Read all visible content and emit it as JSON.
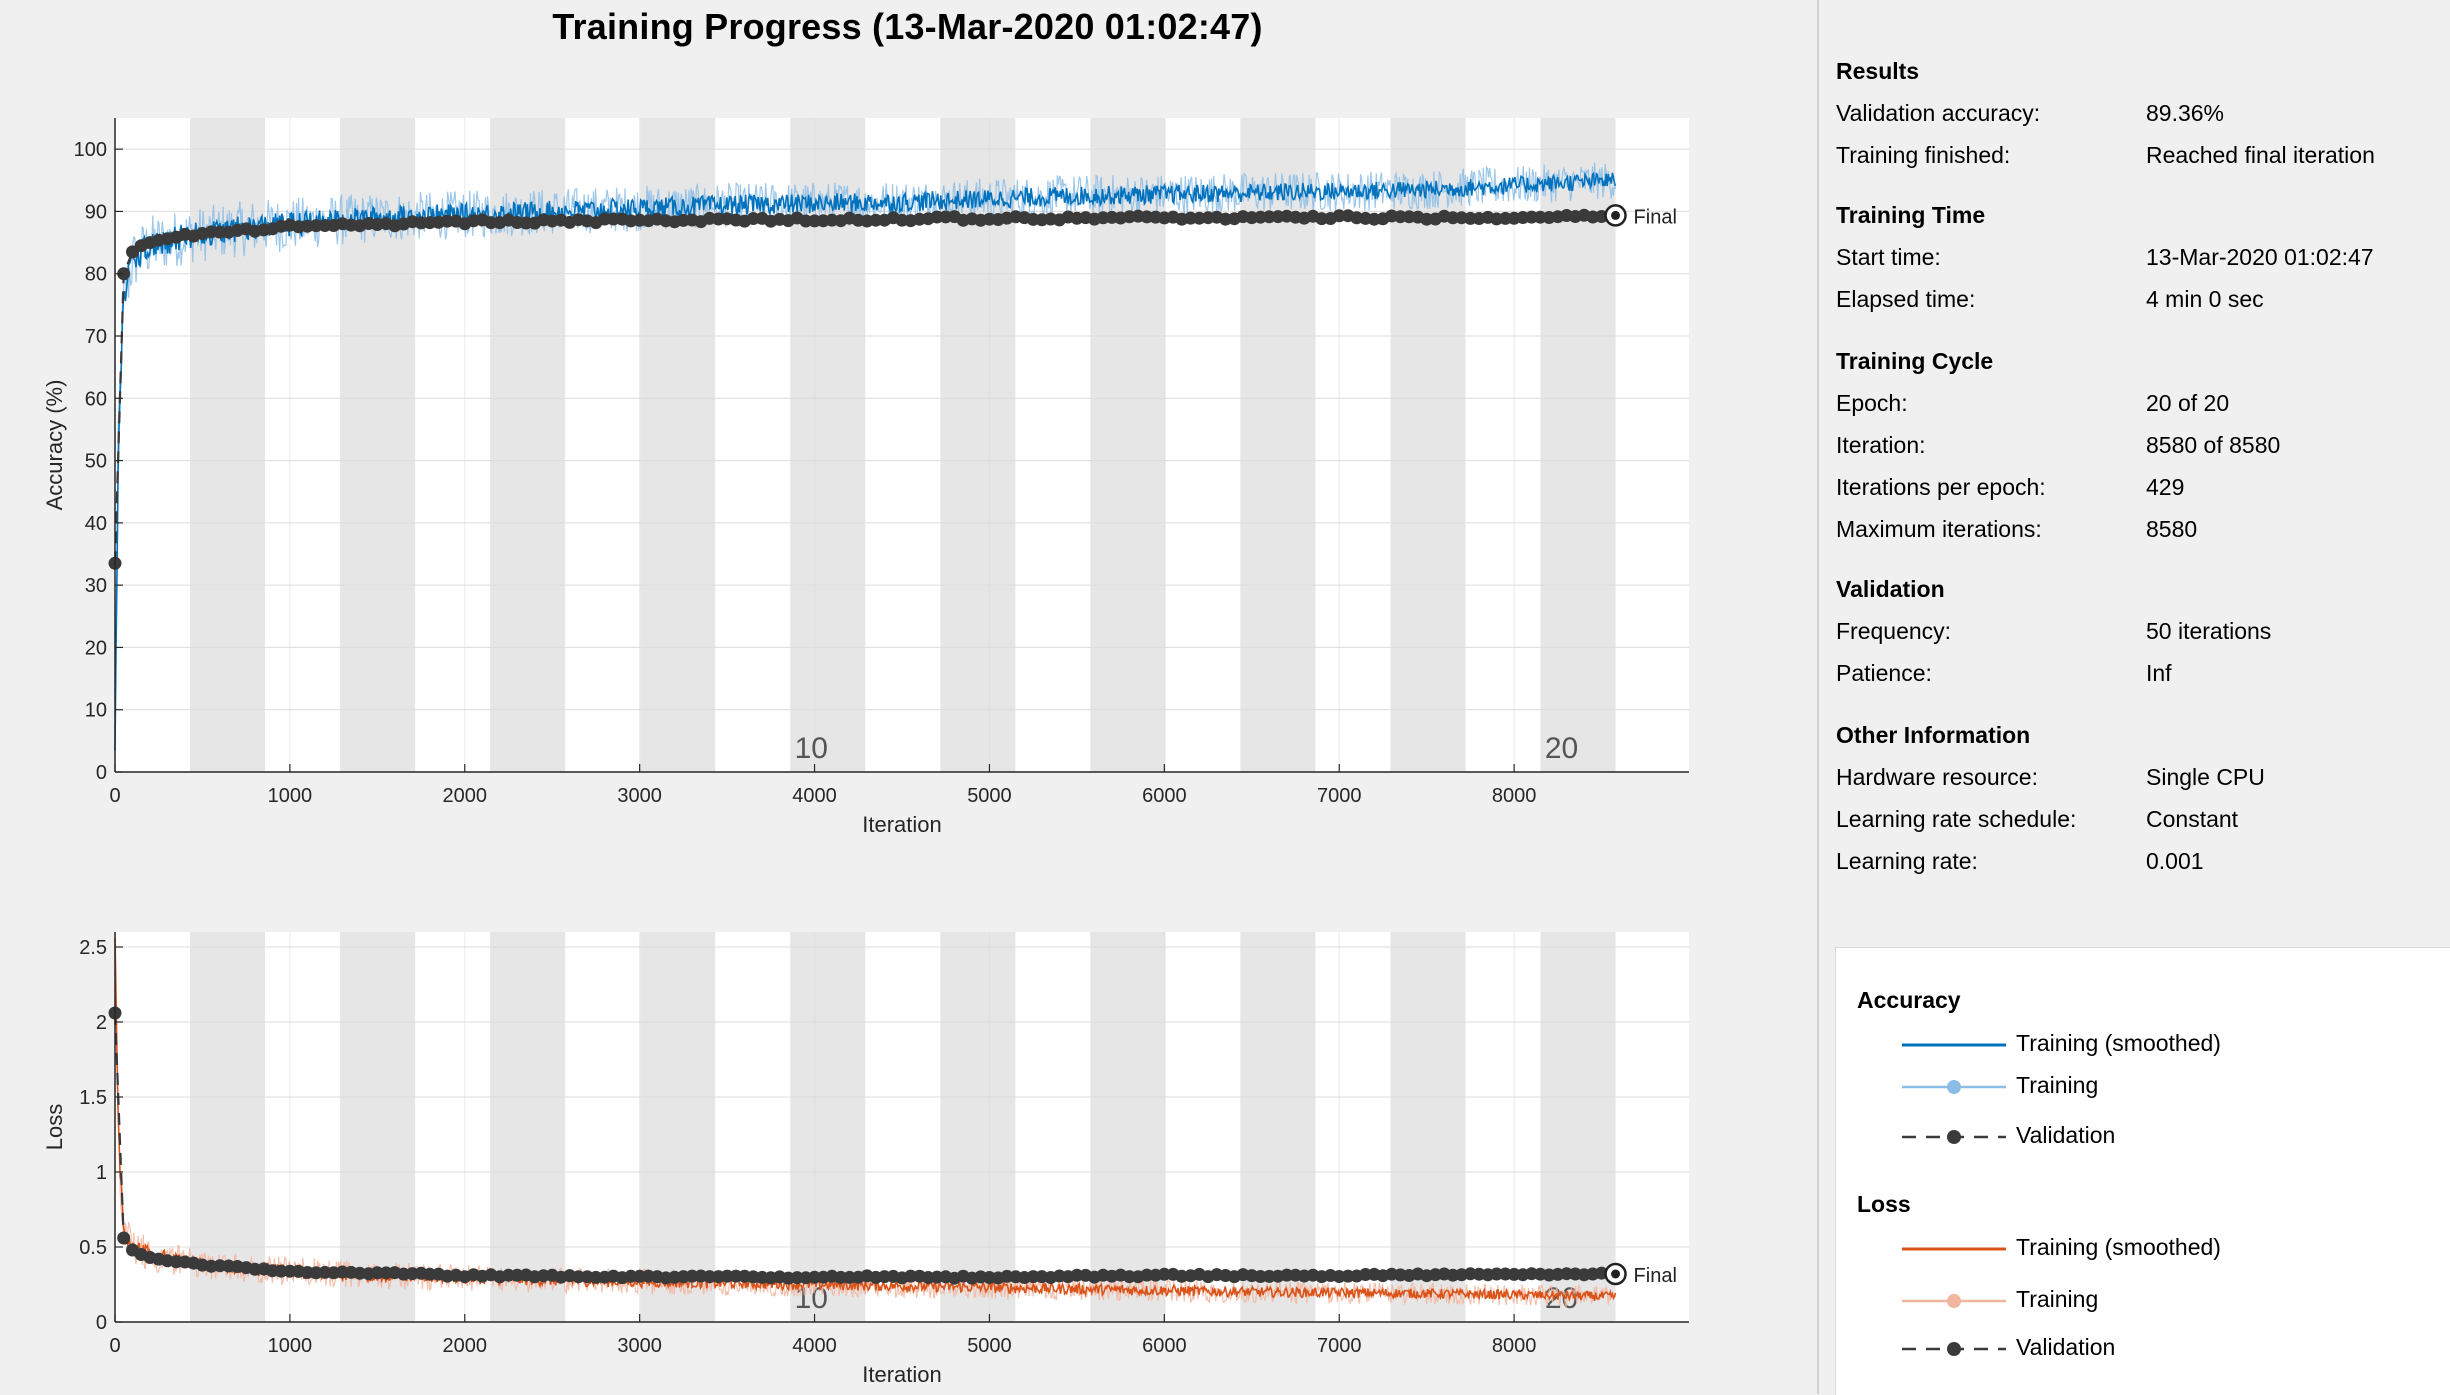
{
  "title": "Training Progress (13-Mar-2020 01:02:47)",
  "colors": {
    "accuracy_smoothed": "#0072bd",
    "accuracy_raw": "#8bbde6",
    "loss_smoothed": "#d95319",
    "loss_raw": "#f2b59d",
    "validation": "#3a3a3a",
    "epoch_band": "#e6e6e6"
  },
  "results_panel": {
    "sections": [
      {
        "title": "Results",
        "rows": [
          {
            "label": "Validation accuracy:",
            "value": "89.36%"
          },
          {
            "label": "Training finished:",
            "value": "Reached final iteration"
          }
        ]
      },
      {
        "title": "Training Time",
        "rows": [
          {
            "label": "Start time:",
            "value": "13-Mar-2020 01:02:47"
          },
          {
            "label": "Elapsed time:",
            "value": "4 min 0 sec"
          }
        ]
      },
      {
        "title": "Training Cycle",
        "rows": [
          {
            "label": "Epoch:",
            "value": "20 of 20"
          },
          {
            "label": "Iteration:",
            "value": "8580 of 8580"
          },
          {
            "label": "Iterations per epoch:",
            "value": "429"
          },
          {
            "label": "Maximum iterations:",
            "value": "8580"
          }
        ]
      },
      {
        "title": "Validation",
        "rows": [
          {
            "label": "Frequency:",
            "value": "50 iterations"
          },
          {
            "label": "Patience:",
            "value": "Inf"
          }
        ]
      },
      {
        "title": "Other Information",
        "rows": [
          {
            "label": "Hardware resource:",
            "value": "Single CPU"
          },
          {
            "label": "Learning rate schedule:",
            "value": "Constant"
          },
          {
            "label": "Learning rate:",
            "value": "0.001"
          }
        ]
      }
    ]
  },
  "legend": {
    "accuracy": {
      "title": "Accuracy",
      "items": [
        {
          "label": "Training (smoothed)",
          "symbol": "line",
          "color_key": "accuracy_smoothed"
        },
        {
          "label": "Training",
          "symbol": "line-dot",
          "color_key": "accuracy_raw"
        },
        {
          "label": "Validation",
          "symbol": "dash-dot",
          "color_key": "validation"
        }
      ]
    },
    "loss": {
      "title": "Loss",
      "items": [
        {
          "label": "Training (smoothed)",
          "symbol": "line",
          "color_key": "loss_smoothed"
        },
        {
          "label": "Training",
          "symbol": "line-dot",
          "color_key": "loss_raw"
        },
        {
          "label": "Validation",
          "symbol": "dash-dot",
          "color_key": "validation"
        }
      ]
    }
  },
  "chart_data": [
    {
      "type": "line",
      "id": "accuracy",
      "ylabel": "Accuracy (%)",
      "xlabel": "Iteration",
      "xlim": [
        0,
        9000
      ],
      "ylim": [
        0,
        105
      ],
      "xticks": [
        0,
        1000,
        2000,
        3000,
        4000,
        5000,
        6000,
        7000,
        8000
      ],
      "yticks": [
        0,
        10,
        20,
        30,
        40,
        50,
        60,
        70,
        80,
        90,
        100
      ],
      "grid": true,
      "iterations_per_epoch": 429,
      "max_iteration": 8580,
      "epoch_labels": [
        {
          "epoch": "10",
          "x": 4290
        },
        {
          "epoch": "20",
          "x": 8580
        }
      ],
      "final_marker": {
        "label": "Final",
        "x": 8580,
        "y": 89.36
      },
      "series": [
        {
          "name": "Training (smoothed)",
          "role": "smoothed",
          "x": [
            0,
            20,
            50,
            100,
            200,
            400,
            800,
            1500,
            2500,
            3500,
            4500,
            5500,
            6500,
            7500,
            8580
          ],
          "y": [
            5,
            55,
            76,
            82,
            84.5,
            86,
            87.5,
            89,
            90,
            91,
            91.5,
            92.5,
            93,
            93.5,
            95
          ]
        },
        {
          "name": "Training",
          "role": "raw",
          "x": [
            0,
            20,
            50,
            100,
            200,
            400,
            800,
            1500,
            2500,
            3500,
            4500,
            5500,
            6500,
            7500,
            8580
          ],
          "y": [
            5,
            55,
            76,
            82,
            84.5,
            86,
            87.5,
            89,
            90,
            91,
            91.5,
            92.5,
            93,
            93.5,
            95
          ],
          "noise": [
            6,
            6,
            5.5,
            5,
            5,
            4.5,
            4.5,
            4,
            3.8,
            3.6,
            3.5,
            3.4,
            3.3,
            3.2,
            3
          ]
        },
        {
          "name": "Validation",
          "role": "validation",
          "x": [
            0,
            50,
            100,
            150,
            200,
            300,
            500,
            1000,
            2000,
            3000,
            4000,
            5000,
            6000,
            7000,
            8000,
            8580
          ],
          "y": [
            33.5,
            80,
            83.5,
            84.5,
            85,
            85.8,
            86.5,
            87.5,
            88.3,
            88.6,
            88.7,
            88.9,
            89,
            89,
            89.1,
            89.36
          ]
        }
      ]
    },
    {
      "type": "line",
      "id": "loss",
      "ylabel": "Loss",
      "xlabel": "Iteration",
      "xlim": [
        0,
        9000
      ],
      "ylim": [
        0,
        2.6
      ],
      "xticks": [
        0,
        1000,
        2000,
        3000,
        4000,
        5000,
        6000,
        7000,
        8000
      ],
      "yticks": [
        0,
        0.5,
        1,
        1.5,
        2,
        2.5
      ],
      "grid": true,
      "iterations_per_epoch": 429,
      "max_iteration": 8580,
      "epoch_labels": [
        {
          "epoch": "10",
          "x": 4290
        },
        {
          "epoch": "20",
          "x": 8580
        }
      ],
      "final_marker": {
        "label": "Final",
        "x": 8580,
        "y": 0.32
      },
      "series": [
        {
          "name": "Training (smoothed)",
          "role": "smoothed",
          "x": [
            0,
            20,
            50,
            100,
            200,
            400,
            800,
            1500,
            2500,
            3500,
            4500,
            5500,
            6500,
            7500,
            8580
          ],
          "y": [
            2.6,
            1.2,
            0.6,
            0.5,
            0.45,
            0.4,
            0.35,
            0.31,
            0.28,
            0.26,
            0.24,
            0.22,
            0.2,
            0.19,
            0.17
          ]
        },
        {
          "name": "Training",
          "role": "raw",
          "x": [
            0,
            20,
            50,
            100,
            200,
            400,
            800,
            1500,
            2500,
            3500,
            4500,
            5500,
            6500,
            7500,
            8580
          ],
          "y": [
            2.6,
            1.2,
            0.6,
            0.5,
            0.45,
            0.4,
            0.35,
            0.31,
            0.28,
            0.26,
            0.24,
            0.22,
            0.2,
            0.19,
            0.17
          ],
          "noise": [
            0.15,
            0.15,
            0.13,
            0.12,
            0.11,
            0.1,
            0.1,
            0.09,
            0.09,
            0.085,
            0.08,
            0.08,
            0.075,
            0.07,
            0.07
          ]
        },
        {
          "name": "Validation",
          "role": "validation",
          "x": [
            0,
            50,
            100,
            150,
            200,
            300,
            500,
            1000,
            2000,
            3000,
            4000,
            5000,
            6000,
            7000,
            8000,
            8580
          ],
          "y": [
            2.06,
            0.56,
            0.48,
            0.45,
            0.43,
            0.41,
            0.38,
            0.34,
            0.31,
            0.3,
            0.3,
            0.3,
            0.31,
            0.31,
            0.32,
            0.32
          ]
        }
      ]
    }
  ]
}
